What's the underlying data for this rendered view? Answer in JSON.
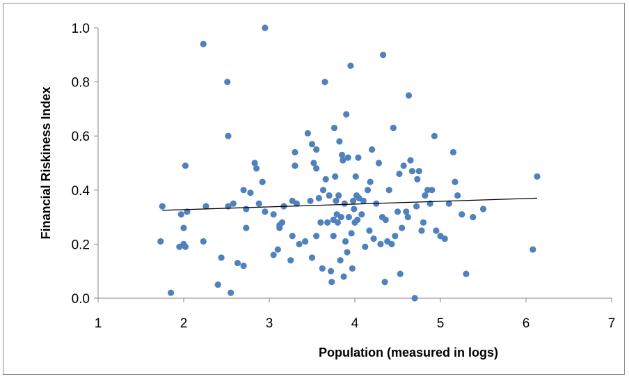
{
  "chart_data": {
    "type": "scatter",
    "title": "",
    "xlabel": "Population (measured in logs)",
    "ylabel": "Financial Riskiness Index",
    "xlim": [
      1,
      7
    ],
    "ylim": [
      0,
      1
    ],
    "x_ticks": [
      "1",
      "2",
      "3",
      "4",
      "5",
      "6",
      "7"
    ],
    "y_ticks": [
      "0.0",
      "0.2",
      "0.4",
      "0.6",
      "0.8",
      "1.0"
    ],
    "grid": false,
    "legend": "none",
    "marker_color": "#4f81bd",
    "trendline": {
      "type": "linear",
      "x": [
        1.75,
        6.13
      ],
      "y": [
        0.325,
        0.37
      ],
      "color": "#000000"
    },
    "series": [
      {
        "points": [
          [
            1.75,
            0.34
          ],
          [
            1.73,
            0.21
          ],
          [
            1.85,
            0.02
          ],
          [
            1.95,
            0.19
          ],
          [
            1.97,
            0.31
          ],
          [
            2.0,
            0.2
          ],
          [
            2.0,
            0.26
          ],
          [
            2.02,
            0.19
          ],
          [
            2.02,
            0.49
          ],
          [
            2.04,
            0.32
          ],
          [
            2.23,
            0.21
          ],
          [
            2.23,
            0.94
          ],
          [
            2.26,
            0.34
          ],
          [
            2.4,
            0.05
          ],
          [
            2.44,
            0.15
          ],
          [
            2.51,
            0.8
          ],
          [
            2.52,
            0.6
          ],
          [
            2.52,
            0.34
          ],
          [
            2.55,
            0.02
          ],
          [
            2.58,
            0.35
          ],
          [
            2.63,
            0.13
          ],
          [
            2.7,
            0.12
          ],
          [
            2.7,
            0.4
          ],
          [
            2.73,
            0.26
          ],
          [
            2.73,
            0.33
          ],
          [
            2.78,
            0.39
          ],
          [
            2.83,
            0.5
          ],
          [
            2.85,
            0.48
          ],
          [
            2.88,
            0.35
          ],
          [
            2.92,
            0.43
          ],
          [
            2.95,
            1.0
          ],
          [
            2.95,
            0.32
          ],
          [
            3.05,
            0.31
          ],
          [
            3.05,
            0.16
          ],
          [
            3.1,
            0.18
          ],
          [
            3.12,
            0.27
          ],
          [
            3.12,
            0.26
          ],
          [
            3.15,
            0.28
          ],
          [
            3.17,
            0.34
          ],
          [
            3.25,
            0.14
          ],
          [
            3.27,
            0.23
          ],
          [
            3.27,
            0.36
          ],
          [
            3.3,
            0.49
          ],
          [
            3.3,
            0.54
          ],
          [
            3.32,
            0.35
          ],
          [
            3.35,
            0.2
          ],
          [
            3.42,
            0.21
          ],
          [
            3.45,
            0.61
          ],
          [
            3.48,
            0.36
          ],
          [
            3.5,
            0.57
          ],
          [
            3.52,
            0.5
          ],
          [
            3.55,
            0.55
          ],
          [
            3.55,
            0.48
          ],
          [
            3.5,
            0.15
          ],
          [
            3.55,
            0.23
          ],
          [
            3.58,
            0.37
          ],
          [
            3.6,
            0.28
          ],
          [
            3.62,
            0.11
          ],
          [
            3.63,
            0.4
          ],
          [
            3.65,
            0.8
          ],
          [
            3.66,
            0.44
          ],
          [
            3.68,
            0.28
          ],
          [
            3.7,
            0.38
          ],
          [
            3.72,
            0.1
          ],
          [
            3.73,
            0.06
          ],
          [
            3.75,
            0.23
          ],
          [
            3.75,
            0.29
          ],
          [
            3.76,
            0.63
          ],
          [
            3.77,
            0.45
          ],
          [
            3.78,
            0.36
          ],
          [
            3.79,
            0.31
          ],
          [
            3.8,
            0.28
          ],
          [
            3.81,
            0.38
          ],
          [
            3.82,
            0.58
          ],
          [
            3.83,
            0.14
          ],
          [
            3.84,
            0.3
          ],
          [
            3.85,
            0.53
          ],
          [
            3.86,
            0.51
          ],
          [
            3.87,
            0.08
          ],
          [
            3.88,
            0.35
          ],
          [
            3.89,
            0.21
          ],
          [
            3.9,
            0.68
          ],
          [
            3.91,
            0.17
          ],
          [
            3.92,
            0.52
          ],
          [
            3.93,
            0.3
          ],
          [
            3.95,
            0.86
          ],
          [
            3.96,
            0.24
          ],
          [
            3.97,
            0.11
          ],
          [
            3.98,
            0.36
          ],
          [
            3.99,
            0.33
          ],
          [
            4.0,
            0.28
          ],
          [
            4.01,
            0.45
          ],
          [
            4.02,
            0.38
          ],
          [
            4.03,
            0.29
          ],
          [
            4.04,
            0.52
          ],
          [
            4.05,
            0.37
          ],
          [
            4.08,
            0.31
          ],
          [
            4.1,
            0.36
          ],
          [
            4.12,
            0.19
          ],
          [
            4.15,
            0.4
          ],
          [
            4.17,
            0.25
          ],
          [
            4.18,
            0.43
          ],
          [
            4.2,
            0.55
          ],
          [
            4.22,
            0.22
          ],
          [
            4.25,
            0.35
          ],
          [
            4.28,
            0.5
          ],
          [
            4.3,
            0.2
          ],
          [
            4.32,
            0.3
          ],
          [
            4.33,
            0.9
          ],
          [
            4.35,
            0.06
          ],
          [
            4.36,
            0.29
          ],
          [
            4.38,
            0.21
          ],
          [
            4.4,
            0.4
          ],
          [
            4.43,
            0.2
          ],
          [
            4.45,
            0.63
          ],
          [
            4.47,
            0.23
          ],
          [
            4.5,
            0.32
          ],
          [
            4.52,
            0.46
          ],
          [
            4.53,
            0.09
          ],
          [
            4.55,
            0.26
          ],
          [
            4.57,
            0.49
          ],
          [
            4.6,
            0.32
          ],
          [
            4.62,
            0.3
          ],
          [
            4.63,
            0.75
          ],
          [
            4.65,
            0.51
          ],
          [
            4.67,
            0.47
          ],
          [
            4.7,
            0.0
          ],
          [
            4.72,
            0.34
          ],
          [
            4.73,
            0.44
          ],
          [
            4.75,
            0.47
          ],
          [
            4.78,
            0.25
          ],
          [
            4.8,
            0.28
          ],
          [
            4.82,
            0.38
          ],
          [
            4.85,
            0.4
          ],
          [
            4.88,
            0.35
          ],
          [
            4.9,
            0.4
          ],
          [
            4.93,
            0.6
          ],
          [
            4.95,
            0.25
          ],
          [
            5.0,
            0.23
          ],
          [
            5.05,
            0.22
          ],
          [
            5.1,
            0.35
          ],
          [
            5.15,
            0.54
          ],
          [
            5.17,
            0.43
          ],
          [
            5.2,
            0.38
          ],
          [
            5.25,
            0.31
          ],
          [
            5.3,
            0.09
          ],
          [
            5.38,
            0.3
          ],
          [
            5.5,
            0.33
          ],
          [
            6.08,
            0.18
          ],
          [
            6.13,
            0.45
          ]
        ]
      }
    ]
  }
}
